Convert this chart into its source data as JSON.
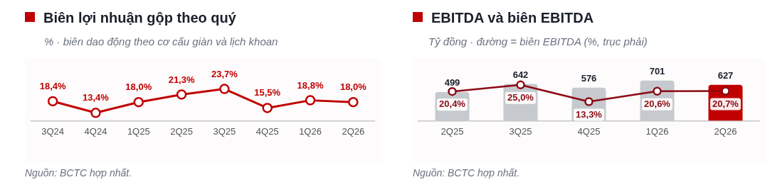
{
  "chart_data": [
    {
      "type": "line",
      "title": "Biên lợi nhuận gộp theo quý",
      "subtitle": "% · biên dao động theo cơ cấu giàn và lịch khoan",
      "categories": [
        "3Q24",
        "4Q24",
        "1Q25",
        "2Q25",
        "3Q25",
        "4Q25",
        "1Q26",
        "2Q26"
      ],
      "values": [
        18.4,
        13.4,
        18.0,
        21.3,
        23.7,
        15.5,
        18.8,
        18.0
      ],
      "color": "#c00000",
      "value_labels": [
        "18,4%",
        "13,4%",
        "18,0%",
        "21,3%",
        "23,7%",
        "15,5%",
        "18,8%",
        "18,0%"
      ],
      "tick_labels": "x",
      "grid": false,
      "marker": "circle",
      "annotations": [
        "Nguồn: BCTC hợp nhất."
      ]
    },
    {
      "type": "bar",
      "title": "EBITDA và biên EBITDA",
      "subtitle": "Tỷ đồng · đường = biên EBITDA (%, trục phải)",
      "categories": [
        "2Q25",
        "3Q25",
        "4Q25",
        "1Q26",
        "2Q26"
      ],
      "series": [
        {
          "type": "bar",
          "colors": [
            "#c6cacf",
            "#c6cacf",
            "#c6cacf",
            "#c6cacf",
            "#c00000"
          ],
          "values": [
            499,
            642,
            576,
            701,
            627
          ],
          "value_labels": [
            "499",
            "642",
            "576",
            "701",
            "627"
          ]
        },
        {
          "type": "line",
          "axis": "y2",
          "color": "#8b0a14",
          "values": [
            20.4,
            25.0,
            13.3,
            20.6,
            20.7
          ],
          "value_labels": [
            "20,4%",
            "25,0%",
            "13,3%",
            "20,6%",
            "20,7%"
          ]
        }
      ],
      "tick_labels": "x",
      "grid": false,
      "marker": "circle",
      "annotations": [
        "Nguồn: BCTC hợp nhất."
      ]
    }
  ]
}
